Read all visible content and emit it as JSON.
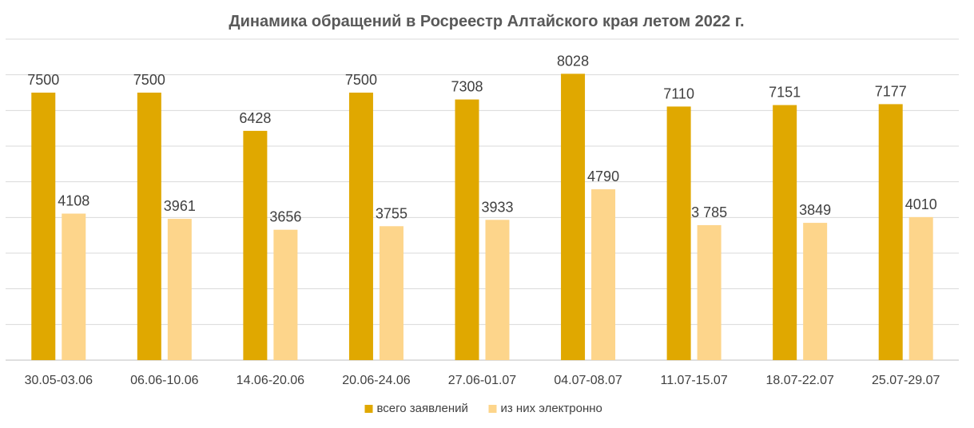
{
  "chart_data": {
    "type": "bar",
    "title": "Динамика обращений в Росреестр Алтайского края летом 2022 г.",
    "xlabel": "",
    "ylabel": "",
    "ylim": [
      0,
      9000
    ],
    "grid": true,
    "legend_position": "bottom",
    "categories": [
      "30.05-03.06",
      "06.06-10.06",
      "14.06-20.06",
      "20.06-24.06",
      "27.06-01.07",
      "04.07-08.07",
      "11.07-15.07",
      "18.07-22.07",
      "25.07-29.07"
    ],
    "series": [
      {
        "name": "всего заявлений",
        "color": "#e0a800",
        "values": [
          7500,
          7500,
          6428,
          7500,
          7308,
          8028,
          7110,
          7151,
          7177
        ],
        "labels": [
          "7500",
          "7500",
          "6428",
          "7500",
          "7308",
          "8028",
          "7110",
          "7151",
          "7177"
        ]
      },
      {
        "name": "из них электронно",
        "color": "#fdd58b",
        "values": [
          4108,
          3961,
          3656,
          3755,
          3933,
          4790,
          3785,
          3849,
          4010
        ],
        "labels": [
          "4108",
          "3961",
          "3656",
          "3755",
          "3933",
          "4790",
          "3 785",
          "3849",
          "4010"
        ]
      }
    ]
  }
}
